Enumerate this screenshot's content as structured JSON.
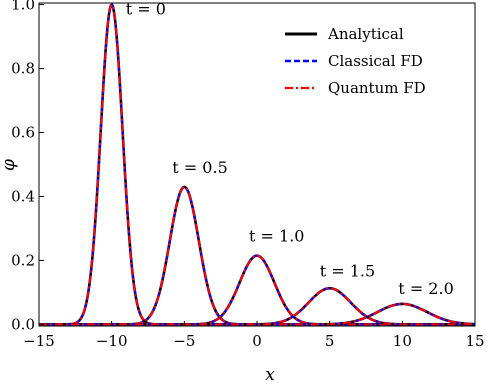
{
  "chart_data": {
    "type": "line",
    "xlabel": "x",
    "ylabel": "φ",
    "xlim": [
      -15,
      15
    ],
    "ylim": [
      -0.005,
      1.005
    ],
    "xticks": [
      -15,
      -10,
      -5,
      0,
      5,
      10,
      15
    ],
    "yticks": [
      0.0,
      0.2,
      0.4,
      0.6,
      0.8,
      1.0
    ],
    "xtick_labels": [
      "−15",
      "−10",
      "−5",
      "0",
      "5",
      "10",
      "15"
    ],
    "ytick_labels": [
      "0.0",
      "0.2",
      "0.4",
      "0.6",
      "0.8",
      "1.0"
    ],
    "grid": false,
    "legend_position": "top-right",
    "series": [
      {
        "name": "Analytical",
        "color": "#000000",
        "style": "solid"
      },
      {
        "name": "Classical FD",
        "color": "#0000ff",
        "style": "dashed"
      },
      {
        "name": "Quantum FD",
        "color": "#ff0000",
        "style": "dashdot"
      }
    ],
    "pulses": [
      {
        "label": "t = 0",
        "t": 0,
        "center": -10,
        "peak": 1.0,
        "sigma": 0.75
      },
      {
        "label": "t = 0.5",
        "t": 0.5,
        "center": -5,
        "peak": 0.43,
        "sigma": 1.0
      },
      {
        "label": "t = 1.0",
        "t": 1.0,
        "center": 0,
        "peak": 0.215,
        "sigma": 1.2
      },
      {
        "label": "t = 1.5",
        "t": 1.5,
        "center": 5,
        "peak": 0.113,
        "sigma": 1.45
      },
      {
        "label": "t = 2.0",
        "t": 2.0,
        "center": 10,
        "peak": 0.064,
        "sigma": 1.7
      }
    ]
  }
}
